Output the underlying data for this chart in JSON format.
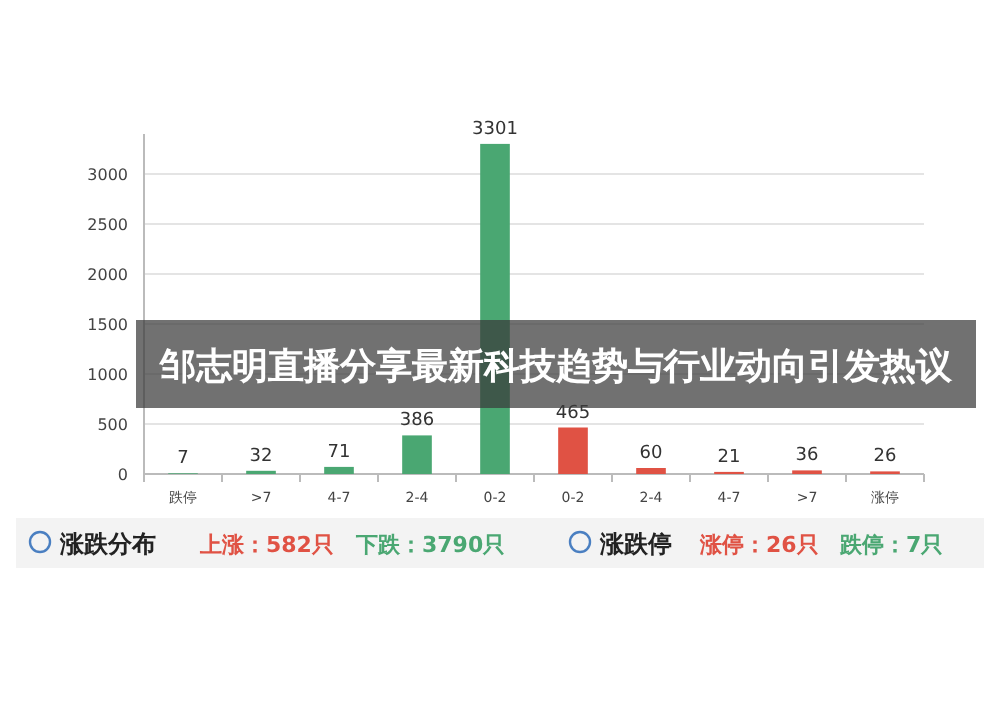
{
  "chart_data": {
    "type": "bar",
    "title": "邹志明直播分享最新科技趋势与行业动向引发热议",
    "categories": [
      "跌停",
      ">7",
      "4-7",
      "2-4",
      "0-2",
      "0-2",
      "2-4",
      "4-7",
      ">7",
      "涨停"
    ],
    "values": [
      7,
      32,
      71,
      386,
      3301,
      465,
      60,
      21,
      36,
      26
    ],
    "colors": [
      "#4aa772",
      "#4aa772",
      "#4aa772",
      "#4aa772",
      "#4aa772",
      "#e05244",
      "#e05244",
      "#e05244",
      "#e05244",
      "#e05244"
    ],
    "ylim": [
      0,
      3400
    ],
    "yticks": [
      0,
      500,
      1000,
      1500,
      2000,
      2500,
      3000
    ],
    "grid": "y",
    "data_labels": true,
    "annotations": [
      "涨跌分布",
      "上涨：582只",
      "下跌：3790只",
      "涨跌停",
      "涨停：26只",
      "跌停：7只"
    ]
  }
}
